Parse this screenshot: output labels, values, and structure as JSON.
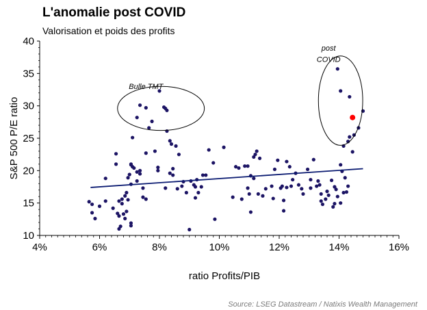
{
  "chart_data": {
    "type": "scatter",
    "title": "L'anomalie post COVID",
    "subtitle": "Valorisation et poids des profits",
    "xlabel": "ratio Profits/PIB",
    "ylabel": "S&P 500 P/E ratio",
    "source": "Source: LSEG Datastream / Natixis Wealth Management",
    "xlim": [
      0.04,
      0.16
    ],
    "ylim": [
      10,
      40
    ],
    "x_ticks": [
      0.04,
      0.06,
      0.08,
      0.1,
      0.12,
      0.14,
      0.16
    ],
    "x_tick_labels": [
      "4%",
      "6%",
      "8%",
      "10%",
      "12%",
      "14%",
      "16%"
    ],
    "y_ticks": [
      10,
      15,
      20,
      25,
      30,
      35,
      40
    ],
    "y_tick_labels": [
      "10",
      "15",
      "20",
      "25",
      "30",
      "35",
      "40"
    ],
    "grid": false,
    "colors": {
      "points": "#1c1464",
      "highlight": "#ff0000",
      "trend": "#0c1c72"
    },
    "trendline": {
      "x": [
        0.057,
        0.148
      ],
      "y": [
        17.4,
        20.3
      ]
    },
    "annotations": [
      {
        "text": "Bulle TMT",
        "x": 0.0755,
        "y": 32.6
      },
      {
        "text": "post",
        "x": 0.1365,
        "y": 38.5
      },
      {
        "text": "COVID",
        "x": 0.1365,
        "y": 36.8
      }
    ],
    "ellipses": [
      {
        "cx": 0.0805,
        "cy": 29.6,
        "rx": 0.0145,
        "ry": 3.4
      },
      {
        "cx": 0.1405,
        "cy": 30.8,
        "rx": 0.0074,
        "ry": 6.9
      }
    ],
    "highlight_point": {
      "x": 0.1445,
      "y": 28.2
    },
    "points": [
      [
        0.0565,
        15.2
      ],
      [
        0.0575,
        14.8
      ],
      [
        0.0585,
        12.6
      ],
      [
        0.0575,
        13.5
      ],
      [
        0.06,
        14.5
      ],
      [
        0.062,
        15.3
      ],
      [
        0.062,
        18.8
      ],
      [
        0.0645,
        14.2
      ],
      [
        0.0655,
        21.0
      ],
      [
        0.0655,
        22.6
      ],
      [
        0.066,
        13.4
      ],
      [
        0.0665,
        13.0
      ],
      [
        0.0665,
        11.0
      ],
      [
        0.067,
        11.4
      ],
      [
        0.0675,
        14.9
      ],
      [
        0.0665,
        15.3
      ],
      [
        0.0675,
        15.6
      ],
      [
        0.068,
        13.3
      ],
      [
        0.0685,
        16.1
      ],
      [
        0.069,
        13.7
      ],
      [
        0.0685,
        12.6
      ],
      [
        0.069,
        16.6
      ],
      [
        0.0695,
        15.5
      ],
      [
        0.07,
        19.4
      ],
      [
        0.0695,
        18.9
      ],
      [
        0.0705,
        17.9
      ],
      [
        0.0705,
        21.0
      ],
      [
        0.071,
        20.6
      ],
      [
        0.0715,
        20.4
      ],
      [
        0.0705,
        20.9
      ],
      [
        0.071,
        25.1
      ],
      [
        0.0705,
        11.9
      ],
      [
        0.0705,
        11.5
      ],
      [
        0.0725,
        19.8
      ],
      [
        0.0725,
        18.4
      ],
      [
        0.0735,
        19.5
      ],
      [
        0.0735,
        20.0
      ],
      [
        0.0745,
        17.3
      ],
      [
        0.0745,
        15.9
      ],
      [
        0.0755,
        15.6
      ],
      [
        0.0755,
        22.7
      ],
      [
        0.0735,
        30.1
      ],
      [
        0.0725,
        28.2
      ],
      [
        0.0755,
        29.7
      ],
      [
        0.0765,
        26.6
      ],
      [
        0.0775,
        27.6
      ],
      [
        0.0785,
        23.0
      ],
      [
        0.0795,
        20.5
      ],
      [
        0.0795,
        20.0
      ],
      [
        0.08,
        32.3
      ],
      [
        0.0815,
        29.8
      ],
      [
        0.0825,
        29.3
      ],
      [
        0.082,
        29.6
      ],
      [
        0.0825,
        26.1
      ],
      [
        0.0835,
        24.6
      ],
      [
        0.084,
        24.1
      ],
      [
        0.0845,
        20.3
      ],
      [
        0.0835,
        19.6
      ],
      [
        0.0845,
        19.3
      ],
      [
        0.082,
        17.3
      ],
      [
        0.0855,
        23.8
      ],
      [
        0.086,
        17.2
      ],
      [
        0.0865,
        22.5
      ],
      [
        0.0875,
        17.6
      ],
      [
        0.088,
        18.3
      ],
      [
        0.089,
        16.6
      ],
      [
        0.09,
        10.9
      ],
      [
        0.0905,
        18.4
      ],
      [
        0.0915,
        17.8
      ],
      [
        0.092,
        15.8
      ],
      [
        0.092,
        17.5
      ],
      [
        0.0925,
        18.6
      ],
      [
        0.093,
        16.6
      ],
      [
        0.094,
        17.5
      ],
      [
        0.0945,
        19.3
      ],
      [
        0.0955,
        19.3
      ],
      [
        0.0965,
        23.2
      ],
      [
        0.098,
        21.2
      ],
      [
        0.0985,
        12.5
      ],
      [
        0.1015,
        23.6
      ],
      [
        0.1045,
        15.9
      ],
      [
        0.1055,
        20.6
      ],
      [
        0.1065,
        20.4
      ],
      [
        0.1075,
        15.6
      ],
      [
        0.1085,
        20.7
      ],
      [
        0.1095,
        17.3
      ],
      [
        0.1095,
        20.7
      ],
      [
        0.11,
        16.4
      ],
      [
        0.1105,
        19.2
      ],
      [
        0.1115,
        18.8
      ],
      [
        0.1115,
        22.1
      ],
      [
        0.112,
        22.5
      ],
      [
        0.1125,
        23.0
      ],
      [
        0.1135,
        21.9
      ],
      [
        0.113,
        16.4
      ],
      [
        0.1105,
        13.6
      ],
      [
        0.1145,
        16.1
      ],
      [
        0.1155,
        17.2
      ],
      [
        0.1175,
        17.6
      ],
      [
        0.118,
        15.7
      ],
      [
        0.1185,
        20.2
      ],
      [
        0.1195,
        21.6
      ],
      [
        0.1205,
        17.3
      ],
      [
        0.121,
        17.6
      ],
      [
        0.1215,
        15.4
      ],
      [
        0.1215,
        13.8
      ],
      [
        0.1225,
        17.4
      ],
      [
        0.1225,
        21.4
      ],
      [
        0.1235,
        20.6
      ],
      [
        0.1245,
        18.6
      ],
      [
        0.124,
        17.6
      ],
      [
        0.1255,
        19.6
      ],
      [
        0.1265,
        17.8
      ],
      [
        0.1275,
        17.2
      ],
      [
        0.128,
        16.4
      ],
      [
        0.1295,
        20.2
      ],
      [
        0.1305,
        18.6
      ],
      [
        0.1305,
        17.3
      ],
      [
        0.1315,
        21.7
      ],
      [
        0.1325,
        17.6
      ],
      [
        0.133,
        18.4
      ],
      [
        0.1335,
        17.8
      ],
      [
        0.134,
        16.4
      ],
      [
        0.134,
        15.3
      ],
      [
        0.1345,
        14.8
      ],
      [
        0.1355,
        15.6
      ],
      [
        0.136,
        16.8
      ],
      [
        0.1365,
        16.2
      ],
      [
        0.1375,
        18.5
      ],
      [
        0.1385,
        17.5
      ],
      [
        0.139,
        17.1
      ],
      [
        0.1395,
        16.0
      ],
      [
        0.1405,
        15.0
      ],
      [
        0.1415,
        16.6
      ],
      [
        0.143,
        17.6
      ],
      [
        0.138,
        14.4
      ],
      [
        0.1385,
        14.9
      ],
      [
        0.1405,
        20.9
      ],
      [
        0.141,
        19.9
      ],
      [
        0.142,
        18.9
      ],
      [
        0.1425,
        16.7
      ],
      [
        0.1415,
        23.8
      ],
      [
        0.143,
        24.5
      ],
      [
        0.1445,
        22.9
      ],
      [
        0.1435,
        25.2
      ],
      [
        0.145,
        25.5
      ],
      [
        0.1465,
        26.6
      ],
      [
        0.148,
        29.2
      ],
      [
        0.1435,
        31.4
      ],
      [
        0.1405,
        32.3
      ],
      [
        0.1395,
        35.7
      ]
    ]
  }
}
